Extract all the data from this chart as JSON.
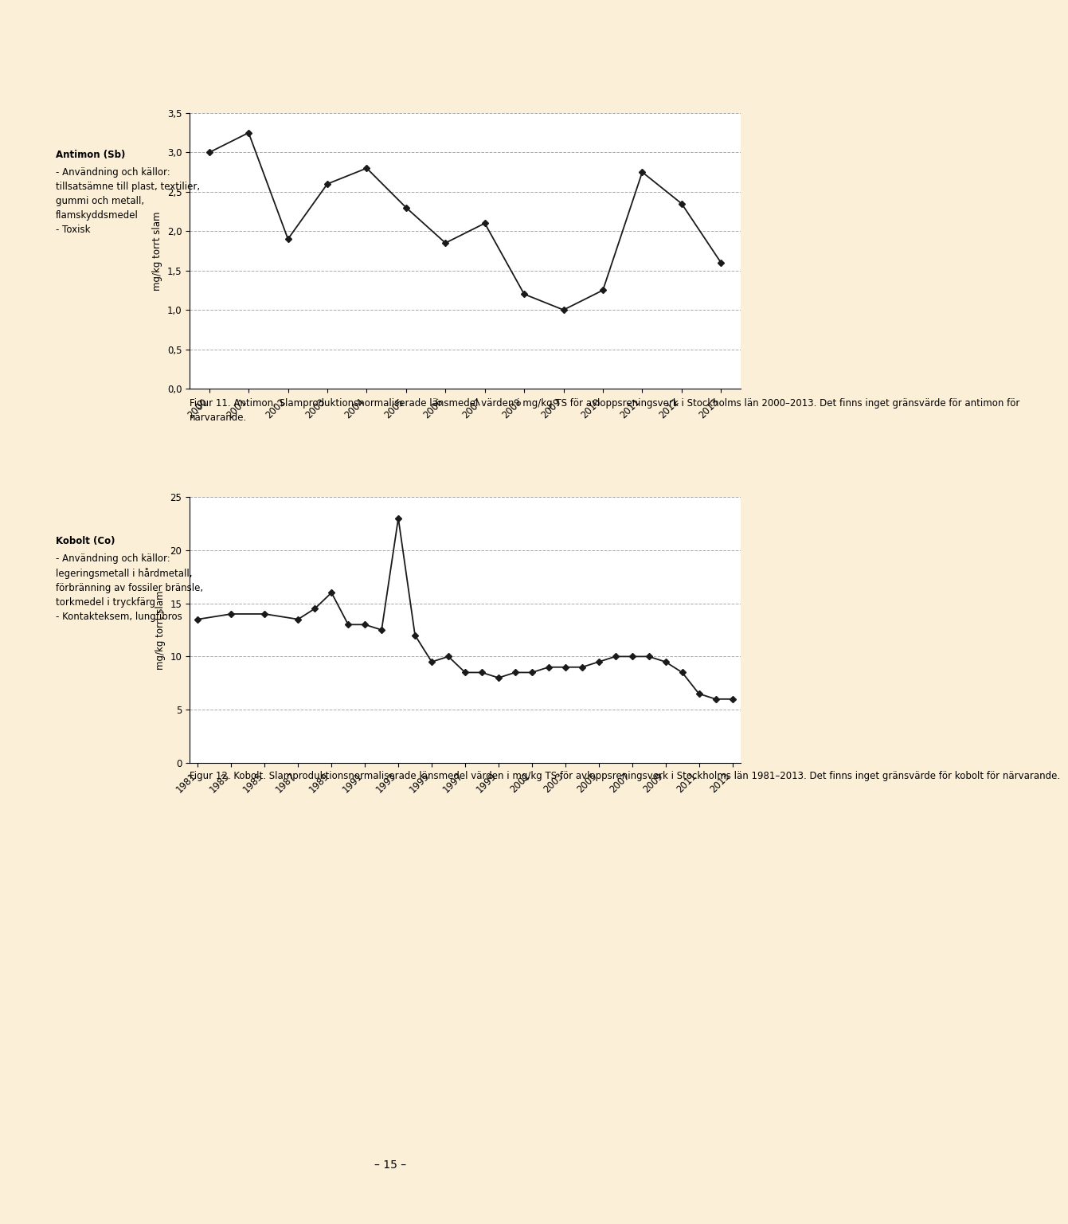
{
  "chart1": {
    "years": [
      2000,
      2001,
      2002,
      2003,
      2004,
      2005,
      2006,
      2007,
      2008,
      2009,
      2010,
      2011,
      2012,
      2013
    ],
    "values": [
      3.0,
      3.25,
      1.9,
      2.6,
      2.8,
      2.3,
      1.85,
      2.1,
      1.2,
      1.0,
      1.25,
      2.75,
      2.35,
      1.6
    ],
    "ylabel": "mg/kg torrt slam",
    "ylim": [
      0.0,
      3.5
    ],
    "yticks": [
      0.0,
      0.5,
      1.0,
      1.5,
      2.0,
      2.5,
      3.0,
      3.5
    ],
    "ytick_labels": [
      "0,0",
      "0,5",
      "1,0",
      "1,5",
      "2,0",
      "2,5",
      "3,0",
      "3,5"
    ],
    "caption": "Figur 11. Antimon. Slamproduktionsnormaliserade länsmedel värden i mg/kg TS för avloppsreningsverk i Stockholms län 2000–2013. Det finns inget gränsvärde för antimon för närvarande."
  },
  "chart2": {
    "years": [
      1981,
      1983,
      1985,
      1987,
      1988,
      1989,
      1990,
      1991,
      1992,
      1993,
      1994,
      1995,
      1996,
      1997,
      1998,
      1999,
      2000,
      2001,
      2002,
      2003,
      2004,
      2005,
      2006,
      2007,
      2008,
      2009,
      2010,
      2011,
      2012,
      2013
    ],
    "values": [
      13.5,
      14.0,
      14.0,
      13.5,
      14.5,
      16.0,
      13.0,
      13.0,
      12.5,
      23.0,
      12.0,
      9.5,
      10.0,
      8.5,
      8.5,
      8.0,
      8.5,
      8.5,
      9.0,
      9.0,
      9.0,
      9.5,
      10.0,
      10.0,
      10.0,
      9.5,
      8.5,
      6.5,
      6.0,
      6.0
    ],
    "ylabel": "mg/kg torrt slam",
    "ylim": [
      0,
      25
    ],
    "yticks": [
      0,
      5,
      10,
      15,
      20,
      25
    ],
    "ytick_labels": [
      "0",
      "5",
      "10",
      "15",
      "20",
      "25"
    ],
    "xticks": [
      1981,
      1983,
      1985,
      1987,
      1989,
      1991,
      1993,
      1995,
      1997,
      1999,
      2001,
      2003,
      2005,
      2007,
      2009,
      2011,
      2013
    ],
    "caption": "Figur 12. Kobolt. Slamproduktionsnormaliserade länsmedel värden i mg/kg TS för avloppsreningsverk i Stockholms län 1981–2013. Det finns inget gränsvärde för kobolt för närvarande."
  },
  "page_bg": "#fcefd8",
  "chart_bg": "#ffffff",
  "sidebar_bar_color": "#e8a96e",
  "left_text1_title": "Antimon (Sb)",
  "left_text1_body": "- Användning och källor:\ntillsatsämne till plast, textilier,\ngummi och metall,\nflamskyddsmedel\n- Toxisk",
  "left_text2_title": "Kobolt (Co)",
  "left_text2_body": "- Användning och källor:\nlegeringsmetall i hårdmetall,\nförbränning av fossiler bränsle,\ntorkmedel i tryckfärg\n- Kontakteksem, lungfibros",
  "page_number": "– 15 –",
  "line_color": "#1a1a1a",
  "marker": "D",
  "markersize": 4,
  "linewidth": 1.3,
  "grid_color": "#aaaaaa",
  "grid_linestyle": "--",
  "grid_linewidth": 0.7,
  "tick_fontsize": 8.5,
  "ylabel_fontsize": 8.5,
  "caption_fontsize": 8.5,
  "sidebar_title_fontsize": 8.5,
  "sidebar_body_fontsize": 8.5
}
